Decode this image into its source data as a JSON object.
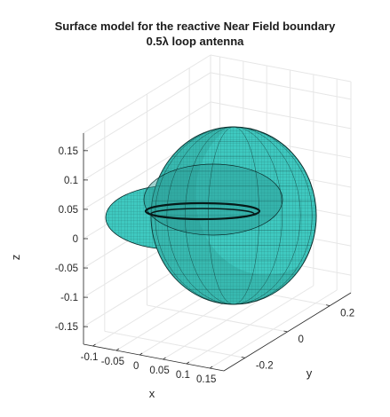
{
  "figure": {
    "title_lines": [
      "Surface model for the reactive Near Field boundary",
      "0.5λ loop antenna"
    ]
  },
  "colors": {
    "surface_fill": "#3fc9c0",
    "surface_fill_dark": "#2a9a92",
    "mesh_line": "#0b2b2a",
    "grid": "#e6e6e6",
    "axis": "#262626"
  },
  "chart_data": {
    "type": "surface",
    "title": "Surface model for the reactive Near Field boundary 0.5λ loop antenna",
    "xlabel": "x",
    "ylabel": "y",
    "zlabel": "z",
    "x_ticks": [
      -0.1,
      -0.05,
      0,
      0.05,
      0.1,
      0.15
    ],
    "x_tick_labels": [
      "-0.1",
      "-0.05",
      "0",
      "0.05",
      "0.1",
      "0.15"
    ],
    "y_ticks": [
      -0.2,
      0,
      0.2
    ],
    "y_tick_labels": [
      "-0.2",
      "0",
      "0.2"
    ],
    "z_ticks": [
      -0.15,
      -0.1,
      -0.05,
      0,
      0.05,
      0.1,
      0.15
    ],
    "z_tick_labels": [
      "-0.15",
      "-0.1",
      "-0.05",
      "0",
      "0.05",
      "0.1",
      "0.15"
    ],
    "xlim": [
      -0.12,
      0.18
    ],
    "ylim": [
      -0.3,
      0.3
    ],
    "zlim": [
      -0.18,
      0.18
    ],
    "grid": true,
    "colormap": "cyan"
  }
}
